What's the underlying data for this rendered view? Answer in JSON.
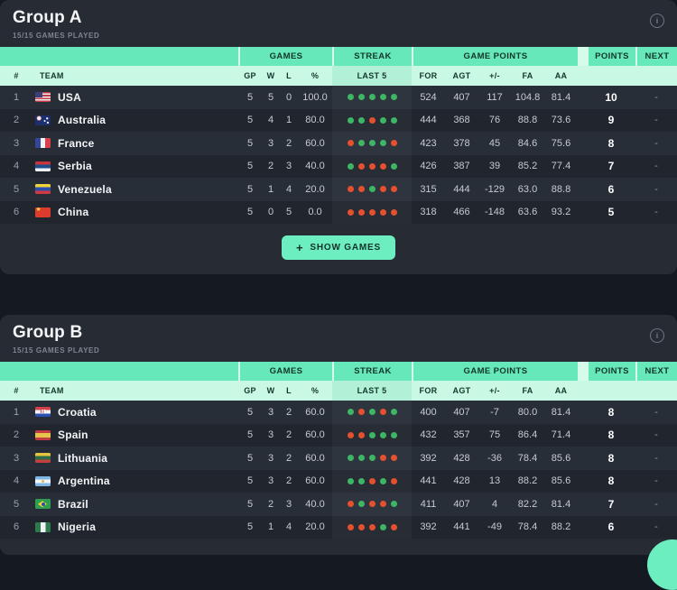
{
  "colors": {
    "page_bg": "#141922",
    "card_bg": "#262b34",
    "accent_mint": "#66e8ba",
    "light_mint": "#c9f8e5",
    "dot_win": "#3eb765",
    "dot_loss": "#e5502e"
  },
  "icons": {
    "info": "i",
    "plus": "+"
  },
  "buttons": {
    "show_games": "SHOW GAMES"
  },
  "table": {
    "columns": {
      "rank": "#",
      "team": "TEAM",
      "games": "GAMES",
      "gp": "GP",
      "w": "W",
      "l": "L",
      "pct": "%",
      "streak": "STREAK",
      "last5": "LAST 5",
      "game_points": "GAME POINTS",
      "for": "FOR",
      "agt": "AGT",
      "plus_minus": "+/-",
      "fa": "FA",
      "aa": "AA",
      "points": "POINTS",
      "next": "NEXT"
    }
  },
  "groups": [
    {
      "title": "Group A",
      "subtitle": "15/15 GAMES PLAYED",
      "show_games": true,
      "rows": [
        {
          "rank": "1",
          "team": "USA",
          "flag": "usa",
          "gp": "5",
          "w": "5",
          "l": "0",
          "pct": "100.0",
          "streak": [
            "W",
            "W",
            "W",
            "W",
            "W"
          ],
          "for": "524",
          "agt": "407",
          "pm": "117",
          "fa": "104.8",
          "aa": "81.4",
          "points": "10",
          "next": "-"
        },
        {
          "rank": "2",
          "team": "Australia",
          "flag": "aus",
          "gp": "5",
          "w": "4",
          "l": "1",
          "pct": "80.0",
          "streak": [
            "W",
            "W",
            "L",
            "W",
            "W"
          ],
          "for": "444",
          "agt": "368",
          "pm": "76",
          "fa": "88.8",
          "aa": "73.6",
          "points": "9",
          "next": "-"
        },
        {
          "rank": "3",
          "team": "France",
          "flag": "fra",
          "gp": "5",
          "w": "3",
          "l": "2",
          "pct": "60.0",
          "streak": [
            "L",
            "W",
            "W",
            "W",
            "L"
          ],
          "for": "423",
          "agt": "378",
          "pm": "45",
          "fa": "84.6",
          "aa": "75.6",
          "points": "8",
          "next": "-"
        },
        {
          "rank": "4",
          "team": "Serbia",
          "flag": "srb",
          "gp": "5",
          "w": "2",
          "l": "3",
          "pct": "40.0",
          "streak": [
            "W",
            "L",
            "L",
            "L",
            "W"
          ],
          "for": "426",
          "agt": "387",
          "pm": "39",
          "fa": "85.2",
          "aa": "77.4",
          "points": "7",
          "next": "-"
        },
        {
          "rank": "5",
          "team": "Venezuela",
          "flag": "ven",
          "gp": "5",
          "w": "1",
          "l": "4",
          "pct": "20.0",
          "streak": [
            "L",
            "L",
            "W",
            "L",
            "L"
          ],
          "for": "315",
          "agt": "444",
          "pm": "-129",
          "fa": "63.0",
          "aa": "88.8",
          "points": "6",
          "next": "-"
        },
        {
          "rank": "6",
          "team": "China",
          "flag": "chn",
          "gp": "5",
          "w": "0",
          "l": "5",
          "pct": "0.0",
          "streak": [
            "L",
            "L",
            "L",
            "L",
            "L"
          ],
          "for": "318",
          "agt": "466",
          "pm": "-148",
          "fa": "63.6",
          "aa": "93.2",
          "points": "5",
          "next": "-"
        }
      ]
    },
    {
      "title": "Group B",
      "subtitle": "15/15 GAMES PLAYED",
      "show_games": false,
      "rows": [
        {
          "rank": "1",
          "team": "Croatia",
          "flag": "cro",
          "gp": "5",
          "w": "3",
          "l": "2",
          "pct": "60.0",
          "streak": [
            "W",
            "L",
            "W",
            "L",
            "W"
          ],
          "for": "400",
          "agt": "407",
          "pm": "-7",
          "fa": "80.0",
          "aa": "81.4",
          "points": "8",
          "next": "-"
        },
        {
          "rank": "2",
          "team": "Spain",
          "flag": "esp",
          "gp": "5",
          "w": "3",
          "l": "2",
          "pct": "60.0",
          "streak": [
            "L",
            "L",
            "W",
            "W",
            "W"
          ],
          "for": "432",
          "agt": "357",
          "pm": "75",
          "fa": "86.4",
          "aa": "71.4",
          "points": "8",
          "next": "-"
        },
        {
          "rank": "3",
          "team": "Lithuania",
          "flag": "ltu",
          "gp": "5",
          "w": "3",
          "l": "2",
          "pct": "60.0",
          "streak": [
            "W",
            "W",
            "W",
            "L",
            "L"
          ],
          "for": "392",
          "agt": "428",
          "pm": "-36",
          "fa": "78.4",
          "aa": "85.6",
          "points": "8",
          "next": "-"
        },
        {
          "rank": "4",
          "team": "Argentina",
          "flag": "arg",
          "gp": "5",
          "w": "3",
          "l": "2",
          "pct": "60.0",
          "streak": [
            "W",
            "W",
            "L",
            "W",
            "L"
          ],
          "for": "441",
          "agt": "428",
          "pm": "13",
          "fa": "88.2",
          "aa": "85.6",
          "points": "8",
          "next": "-"
        },
        {
          "rank": "5",
          "team": "Brazil",
          "flag": "bra",
          "gp": "5",
          "w": "2",
          "l": "3",
          "pct": "40.0",
          "streak": [
            "L",
            "W",
            "L",
            "L",
            "W"
          ],
          "for": "411",
          "agt": "407",
          "pm": "4",
          "fa": "82.2",
          "aa": "81.4",
          "points": "7",
          "next": "-"
        },
        {
          "rank": "6",
          "team": "Nigeria",
          "flag": "nga",
          "gp": "5",
          "w": "1",
          "l": "4",
          "pct": "20.0",
          "streak": [
            "L",
            "L",
            "L",
            "W",
            "L"
          ],
          "for": "392",
          "agt": "441",
          "pm": "-49",
          "fa": "78.4",
          "aa": "88.2",
          "points": "6",
          "next": "-"
        }
      ]
    }
  ],
  "fab": {
    "visible": true
  }
}
